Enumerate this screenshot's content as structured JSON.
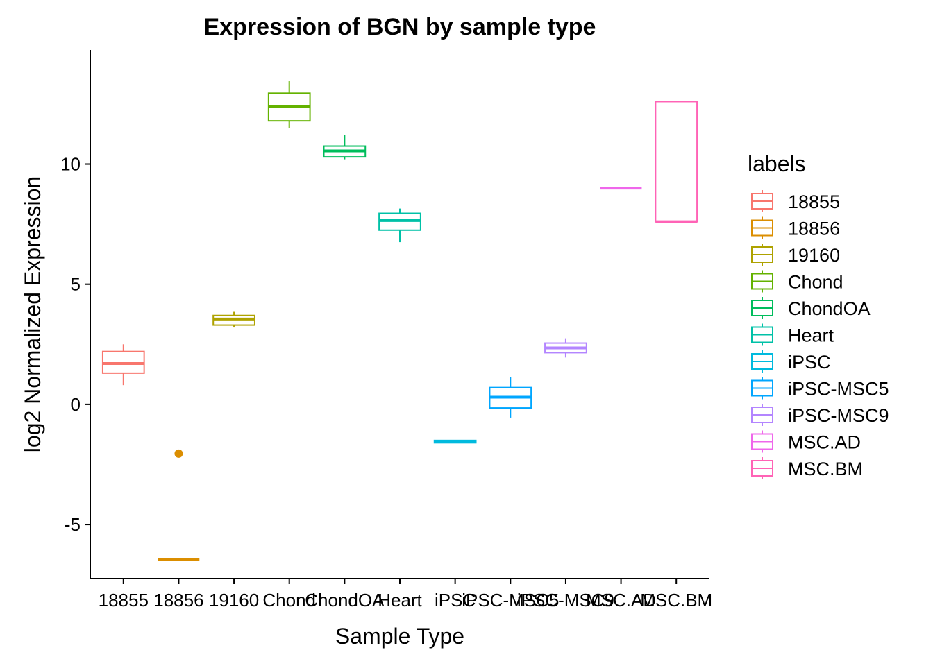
{
  "chart_data": {
    "type": "box",
    "title": "Expression of BGN by sample type",
    "xlabel": "Sample Type",
    "ylabel": "log2 Normalized Expression",
    "ylim": [
      -7.25,
      14.75
    ],
    "yticks": [
      -5,
      0,
      5,
      10
    ],
    "ytick_labels": [
      "-5",
      "0",
      "5",
      "10"
    ],
    "grid": false,
    "legend": {
      "title": "labels",
      "position": "right"
    },
    "categories": [
      "18855",
      "18856",
      "19160",
      "Chond",
      "ChondOA",
      "Heart",
      "iPSC",
      "iPSC-MSC5",
      "iPSC-MSC9",
      "MSC.AD",
      "MSC.BM"
    ],
    "series": [
      {
        "name": "18855",
        "color": "#F8766D",
        "min": 0.8,
        "q1": 1.3,
        "median": 1.7,
        "q3": 2.2,
        "max": 2.5,
        "outliers": []
      },
      {
        "name": "18856",
        "color": "#DB8E00",
        "min": -6.45,
        "q1": -6.45,
        "median": -6.45,
        "q3": -6.45,
        "max": -6.45,
        "outliers": [
          -2.05
        ]
      },
      {
        "name": "19160",
        "color": "#AEA200",
        "min": 3.2,
        "q1": 3.3,
        "median": 3.55,
        "q3": 3.7,
        "max": 3.85,
        "outliers": []
      },
      {
        "name": "Chond",
        "color": "#64B200",
        "min": 11.5,
        "q1": 11.8,
        "median": 12.4,
        "q3": 12.95,
        "max": 13.45,
        "outliers": []
      },
      {
        "name": "ChondOA",
        "color": "#00BD5C",
        "min": 10.2,
        "q1": 10.3,
        "median": 10.55,
        "q3": 10.75,
        "max": 11.2,
        "outliers": []
      },
      {
        "name": "Heart",
        "color": "#00C1A7",
        "min": 6.75,
        "q1": 7.25,
        "median": 7.65,
        "q3": 7.95,
        "max": 8.15,
        "outliers": []
      },
      {
        "name": "iPSC",
        "color": "#00BADE",
        "min": -1.6,
        "q1": -1.6,
        "median": -1.55,
        "q3": -1.5,
        "max": -1.5,
        "outliers": []
      },
      {
        "name": "iPSC-MSC5",
        "color": "#00A6FF",
        "min": -0.55,
        "q1": -0.15,
        "median": 0.3,
        "q3": 0.7,
        "max": 1.15,
        "outliers": []
      },
      {
        "name": "iPSC-MSC9",
        "color": "#B385FF",
        "min": 1.95,
        "q1": 2.15,
        "median": 2.35,
        "q3": 2.55,
        "max": 2.75,
        "outliers": []
      },
      {
        "name": "MSC.AD",
        "color": "#EF67EB",
        "min": 9.0,
        "q1": 9.0,
        "median": 9.0,
        "q3": 9.0,
        "max": 9.0,
        "outliers": []
      },
      {
        "name": "MSC.BM",
        "color": "#FF63B6",
        "min": 7.6,
        "q1": 7.6,
        "median": 7.6,
        "q3": 12.6,
        "max": 12.6,
        "outliers": []
      }
    ]
  }
}
